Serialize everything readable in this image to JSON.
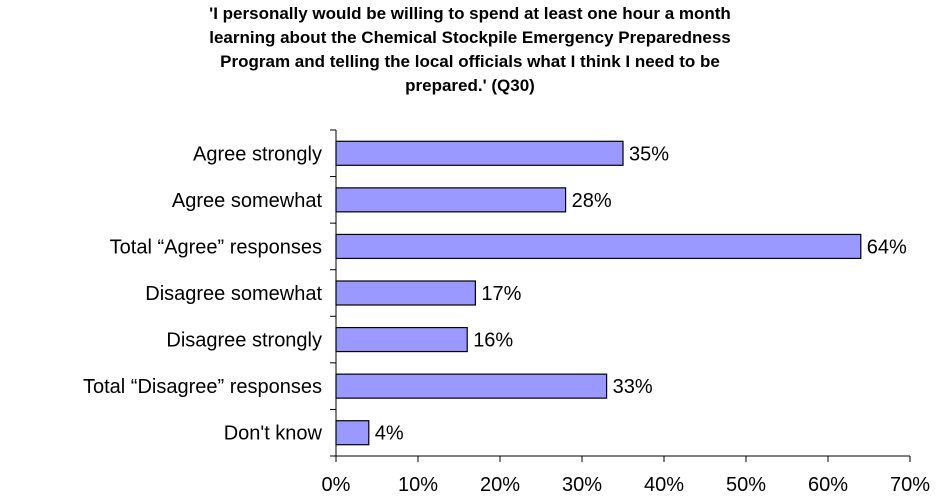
{
  "chart_data": {
    "type": "bar",
    "orientation": "horizontal",
    "title_lines": [
      "'I personally would be willing to spend at least one hour a month",
      "learning about the Chemical Stockpile Emergency Preparedness",
      "Program and telling the local officials what I think I need to be",
      "prepared.' (Q30)"
    ],
    "categories": [
      "Agree strongly",
      "Agree somewhat",
      "Total “Agree” responses",
      "Disagree somewhat",
      "Disagree strongly",
      "Total “Disagree” responses",
      "Don't know"
    ],
    "values": [
      35,
      28,
      64,
      17,
      16,
      33,
      4
    ],
    "value_labels": [
      "35%",
      "28%",
      "64%",
      "17%",
      "16%",
      "33%",
      "4%"
    ],
    "xlim": [
      0,
      70
    ],
    "x_ticks": [
      0,
      10,
      20,
      30,
      40,
      50,
      60,
      70
    ],
    "x_tick_labels": [
      "0%",
      "10%",
      "20%",
      "30%",
      "40%",
      "50%",
      "60%",
      "70%"
    ],
    "grid": false,
    "legend": "none",
    "bar_color": "#9999ff",
    "bar_edge_color": "#000000"
  }
}
